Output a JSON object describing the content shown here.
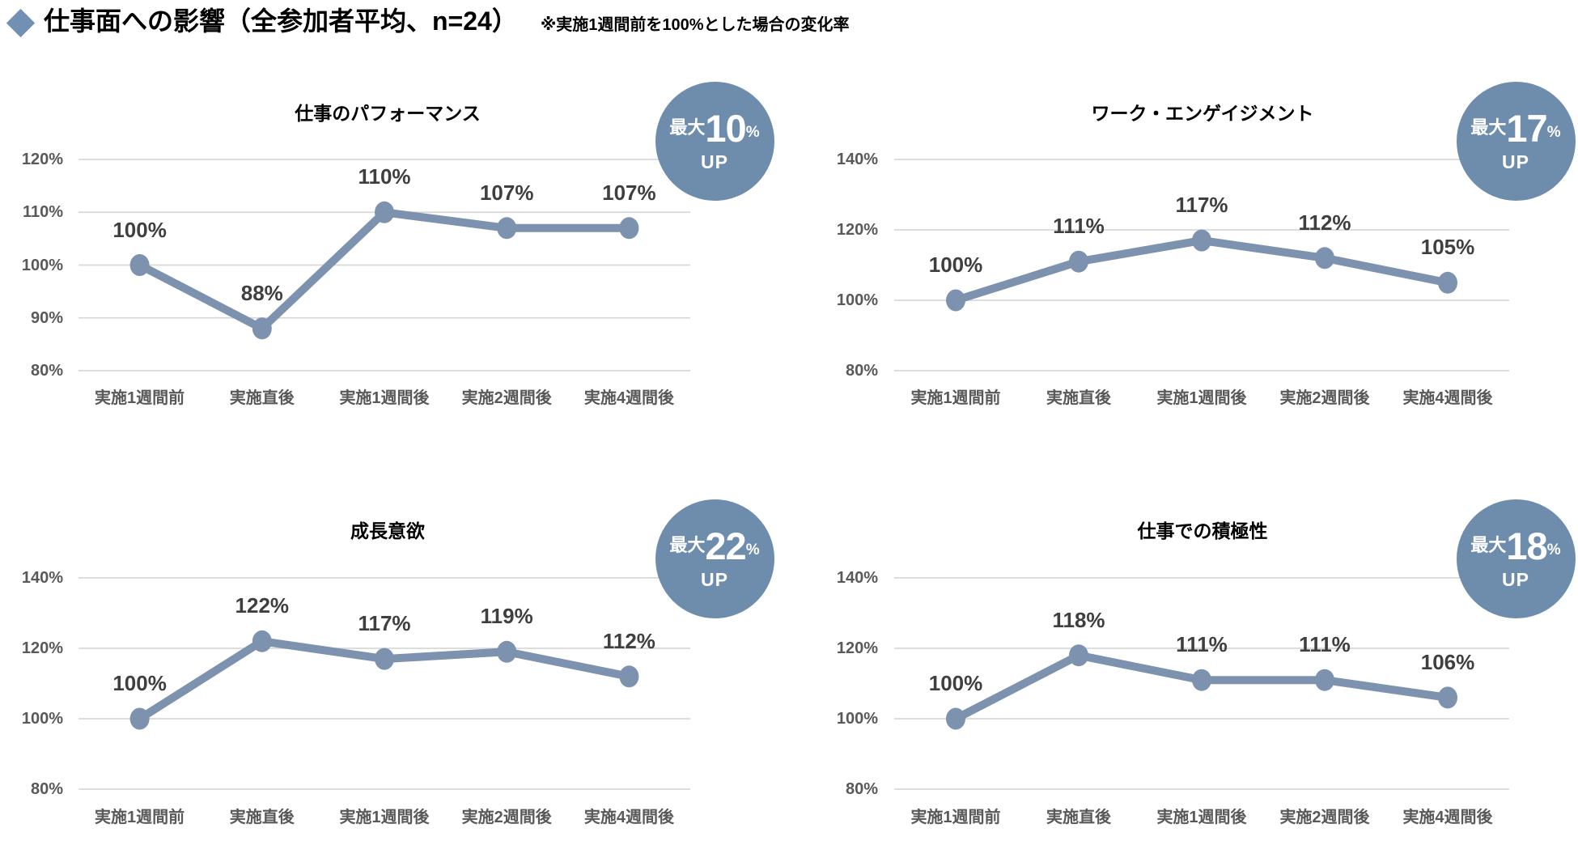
{
  "header": {
    "title": "仕事面への影響（全参加者平均、n=24）",
    "note": "※実施1週間前を100%とした場合の変化率"
  },
  "colors": {
    "accent": "#7C92AF",
    "badge": "#6E8DAD",
    "diamond": "#7290B3",
    "gridline": "#D8D8D8",
    "tick_text": "#595959",
    "data_label_text": "#3F3F3F"
  },
  "chart_data": [
    {
      "type": "line",
      "title": "仕事のパフォーマンス",
      "categories": [
        "実施1週間前",
        "実施直後",
        "実施1週間後",
        "実施2週間後",
        "実施4週間後"
      ],
      "values": [
        100,
        88,
        110,
        107,
        107
      ],
      "data_labels": [
        "100%",
        "88%",
        "110%",
        "107%",
        "107%"
      ],
      "yticks": [
        120,
        110,
        100,
        90,
        80
      ],
      "ytick_labels": [
        "120%",
        "110%",
        "100%",
        "90%",
        "80%"
      ],
      "ylim": [
        80,
        120
      ],
      "xlabel": "",
      "ylabel": "",
      "grid": "horizontal",
      "legend": false,
      "badge": {
        "prefix": "最大",
        "value": "10",
        "unit": "%",
        "label": "UP"
      }
    },
    {
      "type": "line",
      "title": "ワーク・エンゲイジメント",
      "categories": [
        "実施1週間前",
        "実施直後",
        "実施1週間後",
        "実施2週間後",
        "実施4週間後"
      ],
      "values": [
        100,
        111,
        117,
        112,
        105
      ],
      "data_labels": [
        "100%",
        "111%",
        "117%",
        "112%",
        "105%"
      ],
      "yticks": [
        140,
        120,
        100,
        80
      ],
      "ytick_labels": [
        "140%",
        "120%",
        "100%",
        "80%"
      ],
      "ylim": [
        80,
        140
      ],
      "xlabel": "",
      "ylabel": "",
      "grid": "horizontal",
      "legend": false,
      "badge": {
        "prefix": "最大",
        "value": "17",
        "unit": "%",
        "label": "UP"
      }
    },
    {
      "type": "line",
      "title": "成長意欲",
      "categories": [
        "実施1週間前",
        "実施直後",
        "実施1週間後",
        "実施2週間後",
        "実施4週間後"
      ],
      "values": [
        100,
        122,
        117,
        119,
        112
      ],
      "data_labels": [
        "100%",
        "122%",
        "117%",
        "119%",
        "112%"
      ],
      "yticks": [
        140,
        120,
        100,
        80
      ],
      "ytick_labels": [
        "140%",
        "120%",
        "100%",
        "80%"
      ],
      "ylim": [
        80,
        140
      ],
      "xlabel": "",
      "ylabel": "",
      "grid": "horizontal",
      "legend": false,
      "badge": {
        "prefix": "最大",
        "value": "22",
        "unit": "%",
        "label": "UP"
      }
    },
    {
      "type": "line",
      "title": "仕事での積極性",
      "categories": [
        "実施1週間前",
        "実施直後",
        "実施1週間後",
        "実施2週間後",
        "実施4週間後"
      ],
      "values": [
        100,
        118,
        111,
        111,
        106
      ],
      "data_labels": [
        "100%",
        "118%",
        "111%",
        "111%",
        "106%"
      ],
      "yticks": [
        140,
        120,
        100,
        80
      ],
      "ytick_labels": [
        "140%",
        "120%",
        "100%",
        "80%"
      ],
      "ylim": [
        80,
        140
      ],
      "xlabel": "",
      "ylabel": "",
      "grid": "horizontal",
      "legend": false,
      "badge": {
        "prefix": "最大",
        "value": "18",
        "unit": "%",
        "label": "UP"
      }
    }
  ]
}
